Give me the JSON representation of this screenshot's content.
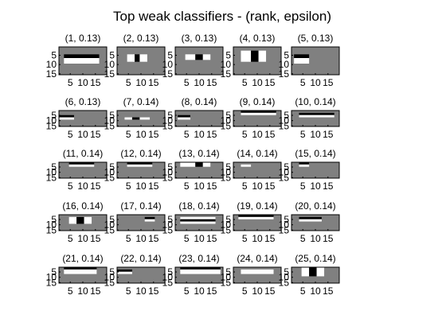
{
  "chart_data": {
    "type": "heatmap",
    "title": "Top weak classifiers - (rank, epsilon)",
    "grid": false,
    "colors": {
      "background": "#ffffff",
      "neutral": "#808080",
      "positive": "#ffffff",
      "negative": "#000000",
      "axis": "#000000"
    },
    "axis_ticks": {
      "x": [
        "5",
        "10",
        "15"
      ],
      "y": [
        "5",
        "10",
        "15"
      ]
    },
    "panel_tick_values": [
      5,
      10,
      15
    ],
    "axis_range": {
      "x": [
        0.5,
        19.5
      ],
      "y": [
        0.5,
        15.5
      ]
    },
    "panel_rows": [
      15,
      7,
      7,
      7,
      7
    ],
    "panels": [
      {
        "rank": 1,
        "epsilon": "0.13",
        "title": "(1, 0.13)",
        "rects": [
          {
            "x": [
              3,
              16
            ],
            "y": [
              5,
              6
            ],
            "value": -1
          },
          {
            "x": [
              3,
              16
            ],
            "y": [
              7,
              9
            ],
            "value": 1
          }
        ]
      },
      {
        "rank": 2,
        "epsilon": "0.13",
        "title": "(2, 0.13)",
        "rects": [
          {
            "x": [
              5,
              7
            ],
            "y": [
              5,
              8
            ],
            "value": 1
          },
          {
            "x": [
              8,
              9
            ],
            "y": [
              5,
              8
            ],
            "value": -1
          },
          {
            "x": [
              10,
              12
            ],
            "y": [
              5,
              8
            ],
            "value": 1
          }
        ]
      },
      {
        "rank": 3,
        "epsilon": "0.13",
        "title": "(3, 0.13)",
        "rects": [
          {
            "x": [
              5,
              8
            ],
            "y": [
              5,
              7
            ],
            "value": 1
          },
          {
            "x": [
              9,
              11
            ],
            "y": [
              5,
              7
            ],
            "value": -1
          },
          {
            "x": [
              12,
              14
            ],
            "y": [
              5,
              7
            ],
            "value": 1
          }
        ]
      },
      {
        "rank": 4,
        "epsilon": "0.13",
        "title": "(4, 0.13)",
        "rects": [
          {
            "x": [
              4,
              7
            ],
            "y": [
              3,
              8
            ],
            "value": 1
          },
          {
            "x": [
              8,
              10
            ],
            "y": [
              3,
              8
            ],
            "value": -1
          },
          {
            "x": [
              11,
              13
            ],
            "y": [
              3,
              8
            ],
            "value": 1
          }
        ]
      },
      {
        "rank": 5,
        "epsilon": "0.13",
        "title": "(5, 0.13)",
        "rects": [
          {
            "x": [
              2,
              7
            ],
            "y": [
              5,
              6
            ],
            "value": -1
          },
          {
            "x": [
              2,
              7
            ],
            "y": [
              7,
              9
            ],
            "value": 1
          }
        ]
      },
      {
        "rank": 6,
        "epsilon": "0.13",
        "title": "(6, 0.13)",
        "rects": [
          {
            "x": [
              1,
              6
            ],
            "y": [
              3,
              3
            ],
            "value": -1
          },
          {
            "x": [
              1,
              6
            ],
            "y": [
              4,
              4
            ],
            "value": 1
          }
        ]
      },
      {
        "rank": 7,
        "epsilon": "0.14",
        "title": "(7, 0.14)",
        "rects": [
          {
            "x": [
              4,
              6
            ],
            "y": [
              4,
              4
            ],
            "value": 1
          },
          {
            "x": [
              7,
              9
            ],
            "y": [
              4,
              4
            ],
            "value": -1
          },
          {
            "x": [
              10,
              13
            ],
            "y": [
              4,
              4
            ],
            "value": 1
          }
        ]
      },
      {
        "rank": 8,
        "epsilon": "0.14",
        "title": "(8, 0.14)",
        "rects": [
          {
            "x": [
              2,
              6
            ],
            "y": [
              3,
              3
            ],
            "value": -1
          },
          {
            "x": [
              2,
              6
            ],
            "y": [
              4,
              4
            ],
            "value": 1
          }
        ]
      },
      {
        "rank": 9,
        "epsilon": "0.14",
        "title": "(9, 0.14)",
        "rects": [
          {
            "x": [
              4,
              17
            ],
            "y": [
              1,
              1
            ],
            "value": -1
          },
          {
            "x": [
              4,
              17
            ],
            "y": [
              2,
              2
            ],
            "value": 1
          }
        ]
      },
      {
        "rank": 10,
        "epsilon": "0.14",
        "title": "(10, 0.14)",
        "rects": [
          {
            "x": [
              4,
              17
            ],
            "y": [
              2,
              2
            ],
            "value": -1
          },
          {
            "x": [
              4,
              17
            ],
            "y": [
              3,
              3
            ],
            "value": 1
          }
        ]
      },
      {
        "rank": 11,
        "epsilon": "0.14",
        "title": "(11, 0.14)",
        "rects": [
          {
            "x": [
              5,
              14
            ],
            "y": [
              1,
              1
            ],
            "value": -1
          },
          {
            "x": [
              5,
              14
            ],
            "y": [
              2,
              2
            ],
            "value": 1
          }
        ]
      },
      {
        "rank": 12,
        "epsilon": "0.14",
        "title": "(12, 0.14)",
        "rects": [
          {
            "x": [
              5,
              14
            ],
            "y": [
              1,
              1
            ],
            "value": -1
          },
          {
            "x": [
              5,
              14
            ],
            "y": [
              2,
              2
            ],
            "value": 1
          }
        ]
      },
      {
        "rank": 13,
        "epsilon": "0.14",
        "title": "(13, 0.14)",
        "rects": [
          {
            "x": [
              3,
              8
            ],
            "y": [
              1,
              2
            ],
            "value": 1
          },
          {
            "x": [
              9,
              11
            ],
            "y": [
              1,
              2
            ],
            "value": -1
          },
          {
            "x": [
              12,
              14
            ],
            "y": [
              1,
              2
            ],
            "value": 1
          }
        ]
      },
      {
        "rank": 14,
        "epsilon": "0.14",
        "title": "(14, 0.14)",
        "rects": [
          {
            "x": [
              4,
              7
            ],
            "y": [
              2,
              2
            ],
            "value": 1
          }
        ]
      },
      {
        "rank": 15,
        "epsilon": "0.14",
        "title": "(15, 0.14)",
        "rects": [
          {
            "x": [
              4,
              7
            ],
            "y": [
              1,
              1
            ],
            "value": -1
          },
          {
            "x": [
              4,
              7
            ],
            "y": [
              2,
              2
            ],
            "value": 1
          }
        ]
      },
      {
        "rank": 16,
        "epsilon": "0.14",
        "title": "(16, 0.14)",
        "rects": [
          {
            "x": [
              5,
              7
            ],
            "y": [
              2,
              4
            ],
            "value": 1
          },
          {
            "x": [
              8,
              10
            ],
            "y": [
              2,
              4
            ],
            "value": -1
          },
          {
            "x": [
              11,
              13
            ],
            "y": [
              2,
              4
            ],
            "value": 1
          }
        ]
      },
      {
        "rank": 17,
        "epsilon": "0.14",
        "title": "(17, 0.14)",
        "rects": [
          {
            "x": [
              12,
              15
            ],
            "y": [
              2,
              2
            ],
            "value": -1
          },
          {
            "x": [
              12,
              15
            ],
            "y": [
              3,
              3
            ],
            "value": 1
          }
        ]
      },
      {
        "rank": 18,
        "epsilon": "0.14",
        "title": "(18, 0.14)",
        "rects": [
          {
            "x": [
              3,
              16
            ],
            "y": [
              2,
              2
            ],
            "value": 1
          },
          {
            "x": [
              3,
              16
            ],
            "y": [
              3,
              3
            ],
            "value": -1
          },
          {
            "x": [
              3,
              16
            ],
            "y": [
              4,
              4
            ],
            "value": 1
          }
        ]
      },
      {
        "rank": 19,
        "epsilon": "0.14",
        "title": "(19, 0.14)",
        "rects": [
          {
            "x": [
              3,
              16
            ],
            "y": [
              1,
              1
            ],
            "value": -1
          },
          {
            "x": [
              3,
              16
            ],
            "y": [
              2,
              2
            ],
            "value": 1
          }
        ]
      },
      {
        "rank": 20,
        "epsilon": "0.14",
        "title": "(20, 0.14)",
        "rects": [
          {
            "x": [
              4,
              12
            ],
            "y": [
              2,
              2
            ],
            "value": -1
          },
          {
            "x": [
              4,
              12
            ],
            "y": [
              3,
              3
            ],
            "value": 1
          }
        ]
      },
      {
        "rank": 21,
        "epsilon": "0.14",
        "title": "(21, 0.14)",
        "rects": [
          {
            "x": [
              3,
              15
            ],
            "y": [
              1,
              1
            ],
            "value": -1
          },
          {
            "x": [
              3,
              15
            ],
            "y": [
              2,
              3
            ],
            "value": 1
          }
        ]
      },
      {
        "rank": 22,
        "epsilon": "0.14",
        "title": "(22, 0.14)",
        "rects": [
          {
            "x": [
              1,
              6
            ],
            "y": [
              2,
              2
            ],
            "value": -1
          },
          {
            "x": [
              1,
              6
            ],
            "y": [
              3,
              3
            ],
            "value": 1
          }
        ]
      },
      {
        "rank": 23,
        "epsilon": "0.14",
        "title": "(23, 0.14)",
        "rects": [
          {
            "x": [
              3,
              18
            ],
            "y": [
              1,
              1
            ],
            "value": -1
          },
          {
            "x": [
              3,
              18
            ],
            "y": [
              2,
              3
            ],
            "value": 1
          }
        ]
      },
      {
        "rank": 24,
        "epsilon": "0.14",
        "title": "(24, 0.14)",
        "rects": [
          {
            "x": [
              4,
              16
            ],
            "y": [
              2,
              3
            ],
            "value": 1
          }
        ]
      },
      {
        "rank": 25,
        "epsilon": "0.14",
        "title": "(25, 0.14)",
        "rects": [
          {
            "x": [
              5,
              7
            ],
            "y": [
              1,
              4
            ],
            "value": 1
          },
          {
            "x": [
              8,
              10
            ],
            "y": [
              1,
              4
            ],
            "value": -1
          },
          {
            "x": [
              11,
              13
            ],
            "y": [
              1,
              4
            ],
            "value": 1
          }
        ]
      }
    ]
  }
}
